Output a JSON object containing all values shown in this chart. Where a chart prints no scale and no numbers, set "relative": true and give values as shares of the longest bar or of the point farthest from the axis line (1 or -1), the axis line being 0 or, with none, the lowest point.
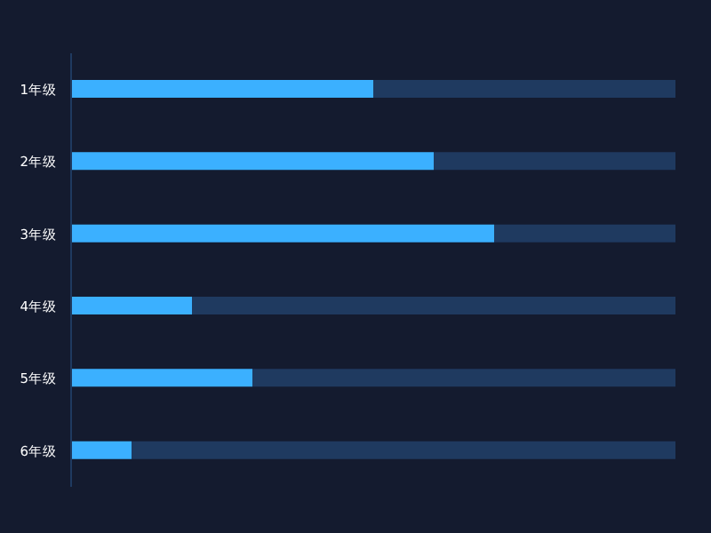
{
  "chart_data": {
    "type": "bar",
    "orientation": "horizontal",
    "stacked": true,
    "relative": true,
    "categories": [
      "1年级",
      "2年级",
      "3年级",
      "4年级",
      "5年级",
      "6年级"
    ],
    "series": [
      {
        "color": "#3bb0ff",
        "values": [
          0.5,
          0.6,
          0.7,
          0.2,
          0.3,
          0.1
        ]
      },
      {
        "color": "#1f3a60",
        "values": [
          0.5,
          0.4,
          0.3,
          0.8,
          0.7,
          0.9
        ]
      }
    ],
    "grid": false,
    "legend": false
  }
}
